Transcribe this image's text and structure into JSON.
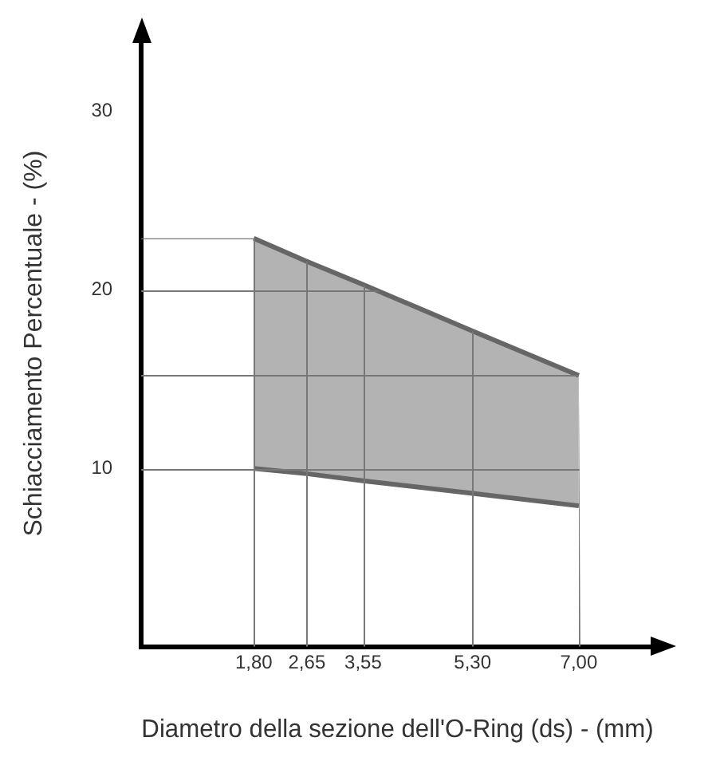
{
  "chart_data": {
    "type": "area",
    "xlabel": "Diametro della sezione dell'O-Ring (ds) - (mm)",
    "ylabel": "Schiacciamento Percentuale - (%)",
    "x": [
      1.8,
      2.65,
      3.55,
      5.3,
      7.0
    ],
    "series": [
      {
        "type": "line",
        "color": "#666666",
        "values": [
          10,
          9.7,
          9.3,
          8.6,
          7.9
        ]
      },
      {
        "color": "#b3b3b3",
        "values": [
          22.9,
          21.6,
          20.3,
          17.7,
          15.2
        ]
      }
    ],
    "xlim": [
      0,
      8.2
    ],
    "ylim": [
      0,
      34
    ],
    "xticks": [
      {
        "value": 1.8,
        "label": "1,80"
      },
      {
        "value": 2.65,
        "label": "2,65"
      },
      {
        "value": 3.55,
        "label": "3,55"
      },
      {
        "value": 5.3,
        "label": "5,30"
      },
      {
        "value": 7.0,
        "label": "7,00"
      }
    ],
    "yticks": [
      10,
      {
        "value": 15.2,
        "label": null
      },
      20,
      {
        "value": 22.9,
        "label": null
      },
      30
    ],
    "grid": true,
    "legend": false
  }
}
